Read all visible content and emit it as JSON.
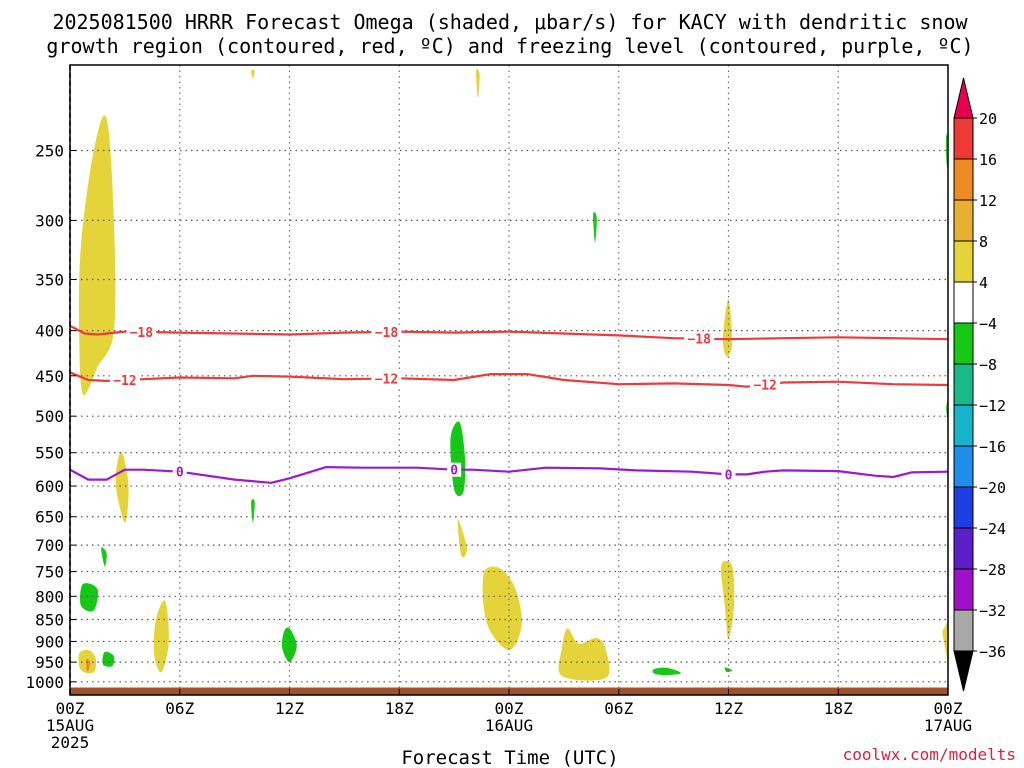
{
  "chart_data": {
    "type": "contour",
    "title_lines": [
      "2025081500 HRRR Forecast Omega (shaded, μbar/s) for KACY with dendritic snow",
      "growth region (contoured, red, ºC) and freezing level (contoured, purple, ºC)"
    ],
    "xlabel": "Forecast Time (UTC)",
    "x_range_hours": [
      0,
      48
    ],
    "x_ticks": [
      {
        "hour": 0,
        "lines": [
          "00Z",
          "15AUG",
          "2025"
        ]
      },
      {
        "hour": 6,
        "lines": [
          "06Z"
        ]
      },
      {
        "hour": 12,
        "lines": [
          "12Z"
        ]
      },
      {
        "hour": 18,
        "lines": [
          "18Z"
        ]
      },
      {
        "hour": 24,
        "lines": [
          "00Z",
          "16AUG"
        ]
      },
      {
        "hour": 30,
        "lines": [
          "06Z"
        ]
      },
      {
        "hour": 36,
        "lines": [
          "12Z"
        ]
      },
      {
        "hour": 42,
        "lines": [
          "18Z"
        ]
      },
      {
        "hour": 48,
        "lines": [
          "00Z",
          "17AUG"
        ]
      }
    ],
    "y_scale": "log",
    "y_range_hpa": [
      1035,
      200
    ],
    "y_ticks": [
      "250",
      "300",
      "350",
      "400",
      "450",
      "500",
      "550",
      "600",
      "650",
      "700",
      "750",
      "800",
      "850",
      "900",
      "950",
      "1000"
    ],
    "colorbar": {
      "labels": [
        "20",
        "16",
        "12",
        "8",
        "4",
        "−4",
        "−8",
        "−12",
        "−16",
        "−20",
        "−24",
        "−28",
        "−32",
        "−36"
      ],
      "colors": [
        "#e8004e",
        "#ee3a35",
        "#f08a22",
        "#e7b02e",
        "#e4d43a",
        "#ffffff",
        "#15c815",
        "#1ab98c",
        "#17b3cc",
        "#1e8eea",
        "#1d3ee0",
        "#5a1fc8",
        "#a010c8",
        "#a8a8a8",
        "#000000"
      ]
    },
    "contours": [
      {
        "name": "dgz_top",
        "color": "#ee3a3a",
        "label": "−18",
        "points": [
          [
            0,
            395
          ],
          [
            0.8,
            403
          ],
          [
            1.5,
            404
          ],
          [
            3,
            401
          ],
          [
            6,
            402
          ],
          [
            9,
            403
          ],
          [
            12,
            404
          ],
          [
            15,
            402
          ],
          [
            18,
            401
          ],
          [
            21,
            402
          ],
          [
            24,
            401
          ],
          [
            27,
            403
          ],
          [
            30,
            405
          ],
          [
            33,
            408
          ],
          [
            36,
            409
          ],
          [
            39,
            408
          ],
          [
            42,
            407
          ],
          [
            45,
            408
          ],
          [
            48,
            409
          ]
        ],
        "label_hours": [
          3.9,
          17.3,
          34.4
        ]
      },
      {
        "name": "dgz_bottom",
        "color": "#ee3a3a",
        "label": "−12",
        "points": [
          [
            0,
            446
          ],
          [
            1,
            455
          ],
          [
            2,
            456
          ],
          [
            4,
            454
          ],
          [
            6,
            452
          ],
          [
            9,
            453
          ],
          [
            10,
            450
          ],
          [
            12,
            451
          ],
          [
            15,
            454
          ],
          [
            18,
            453
          ],
          [
            21,
            455
          ],
          [
            23,
            448
          ],
          [
            25,
            448
          ],
          [
            27,
            455
          ],
          [
            30,
            460
          ],
          [
            33,
            459
          ],
          [
            36,
            461
          ],
          [
            37,
            463
          ],
          [
            39,
            458
          ],
          [
            42,
            457
          ],
          [
            45,
            460
          ],
          [
            48,
            461
          ]
        ],
        "label_hours": [
          3.0,
          17.3,
          38.0
        ]
      },
      {
        "name": "freezing_level",
        "color": "#9b1ad1",
        "label": "0",
        "points": [
          [
            0,
            575
          ],
          [
            1,
            590
          ],
          [
            2,
            590
          ],
          [
            3,
            575
          ],
          [
            4,
            575
          ],
          [
            6,
            578
          ],
          [
            9,
            590
          ],
          [
            11,
            595
          ],
          [
            12,
            588
          ],
          [
            14,
            571
          ],
          [
            16,
            572
          ],
          [
            19,
            572
          ],
          [
            21,
            575
          ],
          [
            22,
            575
          ],
          [
            24,
            578
          ],
          [
            26,
            572
          ],
          [
            29,
            573
          ],
          [
            31,
            576
          ],
          [
            34,
            578
          ],
          [
            36,
            582
          ],
          [
            37,
            582
          ],
          [
            38,
            578
          ],
          [
            39,
            576
          ],
          [
            42,
            577
          ],
          [
            44,
            584
          ],
          [
            45,
            586
          ],
          [
            46,
            579
          ],
          [
            48,
            578
          ]
        ],
        "label_hours": [
          6.0,
          21.0,
          36.0
        ]
      }
    ],
    "omega_blobs": [
      {
        "color": "#e4d43a",
        "points": [
          [
            0.7,
            472
          ],
          [
            0.5,
            400
          ],
          [
            0.6,
            320
          ],
          [
            1.3,
            250
          ],
          [
            2,
            230
          ],
          [
            2.4,
            300
          ],
          [
            2.4,
            400
          ],
          [
            1.5,
            440
          ]
        ]
      },
      {
        "color": "#e4d43a",
        "points": [
          [
            2.8,
            548
          ],
          [
            2.5,
            595
          ],
          [
            3.0,
            660
          ],
          [
            3.2,
            600
          ]
        ]
      },
      {
        "color": "#e4d43a",
        "points": [
          [
            0.5,
            930
          ],
          [
            0.6,
            970
          ],
          [
            1.3,
            975
          ],
          [
            1.4,
            940
          ],
          [
            1,
            920
          ]
        ]
      },
      {
        "color": "#f08a22",
        "points": [
          [
            0.9,
            942
          ],
          [
            0.9,
            968
          ],
          [
            1.0,
            972
          ],
          [
            1.1,
            950
          ]
        ]
      },
      {
        "color": "#e4d43a",
        "points": [
          [
            4.7,
            850
          ],
          [
            4.6,
            930
          ],
          [
            5.0,
            975
          ],
          [
            5.4,
            900
          ],
          [
            5.2,
            810
          ]
        ]
      },
      {
        "color": "#e4d43a",
        "points": [
          [
            21.2,
            655
          ],
          [
            21.4,
            720
          ],
          [
            21.7,
            705
          ]
        ]
      },
      {
        "color": "#e4d43a",
        "points": [
          [
            22.6,
            757
          ],
          [
            22.8,
            860
          ],
          [
            24.0,
            920
          ],
          [
            24.7,
            860
          ],
          [
            24.3,
            780
          ],
          [
            23.4,
            742
          ]
        ]
      },
      {
        "color": "#e4d43a",
        "points": [
          [
            26.9,
            915
          ],
          [
            26.9,
            985
          ],
          [
            29.3,
            990
          ],
          [
            29.3,
            920
          ],
          [
            28.8,
            892
          ],
          [
            27.8,
            905
          ],
          [
            27.2,
            870
          ]
        ]
      },
      {
        "color": "#e4d43a",
        "points": [
          [
            35.6,
            738
          ],
          [
            35.8,
            820
          ],
          [
            36.0,
            895
          ],
          [
            36.3,
            820
          ],
          [
            36.2,
            740
          ]
        ]
      },
      {
        "color": "#e4d43a",
        "points": [
          [
            35.7,
            408
          ],
          [
            35.9,
            428
          ],
          [
            36.2,
            413
          ],
          [
            36.0,
            368
          ]
        ]
      },
      {
        "color": "#e4d43a",
        "points": [
          [
            47.8,
            870
          ],
          [
            47.7,
            880
          ],
          [
            47.9,
            930
          ],
          [
            48,
            950
          ],
          [
            48,
            860
          ]
        ]
      },
      {
        "color": "#e4d43a",
        "points": [
          [
            22.2,
            203
          ],
          [
            22.3,
            218
          ],
          [
            22.4,
            205
          ]
        ]
      },
      {
        "color": "#e4d43a",
        "points": [
          [
            9.9,
            203
          ],
          [
            10.0,
            207
          ],
          [
            10.1,
            203
          ]
        ]
      },
      {
        "color": "#15c815",
        "points": [
          [
            20.8,
            530
          ],
          [
            21.0,
            605
          ],
          [
            21.5,
            610
          ],
          [
            21.6,
            560
          ],
          [
            21.3,
            508
          ]
        ]
      },
      {
        "color": "#15c815",
        "points": [
          [
            0.7,
            775
          ],
          [
            0.6,
            820
          ],
          [
            1.3,
            830
          ],
          [
            1.5,
            785
          ]
        ]
      },
      {
        "color": "#15c815",
        "points": [
          [
            1.9,
            925
          ],
          [
            1.8,
            955
          ],
          [
            2.3,
            960
          ],
          [
            2.4,
            935
          ]
        ]
      },
      {
        "color": "#15c815",
        "points": [
          [
            1.7,
            705
          ],
          [
            1.9,
            740
          ],
          [
            2.0,
            715
          ]
        ]
      },
      {
        "color": "#15c815",
        "points": [
          [
            9.9,
            625
          ],
          [
            10.0,
            660
          ],
          [
            10.1,
            625
          ]
        ]
      },
      {
        "color": "#15c815",
        "points": [
          [
            11.7,
            877
          ],
          [
            11.6,
            915
          ],
          [
            12.0,
            950
          ],
          [
            12.4,
            910
          ],
          [
            12.0,
            870
          ]
        ]
      },
      {
        "color": "#15c815",
        "points": [
          [
            28.6,
            295
          ],
          [
            28.7,
            318
          ],
          [
            28.8,
            298
          ]
        ]
      },
      {
        "color": "#15c815",
        "points": [
          [
            31.9,
            968
          ],
          [
            32.0,
            980
          ],
          [
            32.8,
            982
          ],
          [
            33.4,
            977
          ],
          [
            32.6,
            964
          ]
        ]
      },
      {
        "color": "#15c815",
        "points": [
          [
            35.8,
            963
          ],
          [
            35.9,
            975
          ],
          [
            36.2,
            970
          ]
        ]
      },
      {
        "color": "#15c815",
        "points": [
          [
            47.9,
            240
          ],
          [
            48,
            245
          ],
          [
            48,
            262
          ],
          [
            47.9,
            255
          ]
        ]
      },
      {
        "color": "#15c815",
        "points": [
          [
            47.9,
            490
          ],
          [
            48,
            480
          ],
          [
            48,
            505
          ]
        ]
      }
    ]
  },
  "credit": "coolwx.com/modelts"
}
